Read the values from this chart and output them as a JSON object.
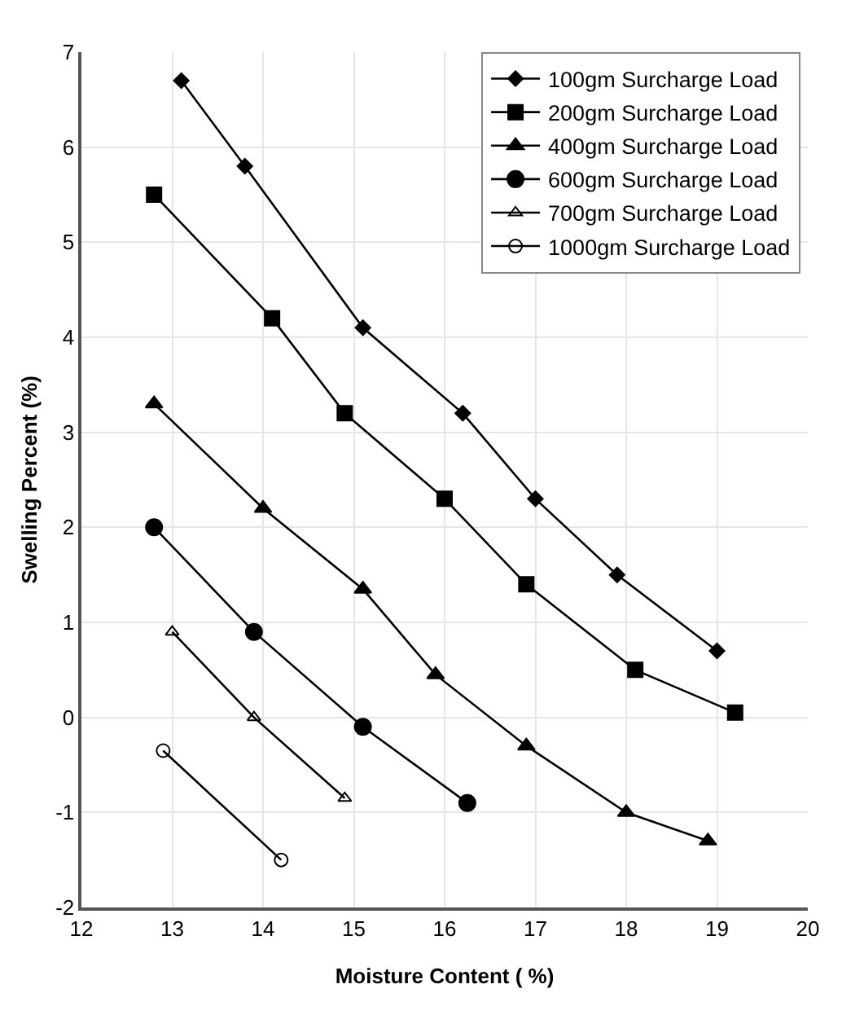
{
  "chart_data": {
    "type": "line",
    "xlabel": "Moisture Content ( %)",
    "ylabel": "Swelling Percent (%)",
    "xlim": [
      12,
      20
    ],
    "xticks": [
      12,
      13,
      14,
      15,
      16,
      17,
      18,
      19,
      20
    ],
    "ylim": [
      -2,
      7
    ],
    "yticks": [
      -2,
      -1,
      0,
      1,
      2,
      3,
      4,
      5,
      6,
      7
    ],
    "grid": true,
    "legend": "top right",
    "line_style": "solid",
    "series": [
      {
        "name": "100gm Surcharge Load",
        "color": "#000000",
        "marker": "diamond",
        "x": [
          13.1,
          13.8,
          15.1,
          16.2,
          17,
          17.9,
          19
        ],
        "values": [
          6.7,
          5.8,
          4.1,
          3.2,
          2.3,
          1.5,
          0.7
        ]
      },
      {
        "name": "200gm Surcharge Load",
        "color": "#000000",
        "marker": "square",
        "x": [
          12.8,
          14.1,
          14.9,
          16,
          16.9,
          18.1,
          19.2
        ],
        "values": [
          5.5,
          4.2,
          3.2,
          2.3,
          1.4,
          0.5,
          0.05
        ]
      },
      {
        "name": "400gm Surcharge Load",
        "color": "#000000",
        "marker": "triangle",
        "x": [
          12.8,
          14,
          15.1,
          15.9,
          16.9,
          18,
          18.9
        ],
        "values": [
          3.3,
          2.2,
          1.35,
          0.45,
          -0.3,
          -1.0,
          -1.3
        ]
      },
      {
        "name": "600gm Surcharge Load",
        "color": "#000000",
        "marker": "circle",
        "x": [
          12.8,
          13.9,
          15.1,
          16.25
        ],
        "values": [
          2.0,
          0.9,
          -0.1,
          -0.9
        ]
      },
      {
        "name": "700gm Surcharge Load",
        "color": "#000000",
        "marker": "triangle-open",
        "x": [
          13,
          13.9,
          14.9
        ],
        "values": [
          0.9,
          0,
          -0.85
        ]
      },
      {
        "name": "1000gm Surcharge Load",
        "color": "#000000",
        "marker": "circle-open",
        "x": [
          12.9,
          14.2
        ],
        "values": [
          -0.35,
          -1.5
        ]
      }
    ]
  }
}
